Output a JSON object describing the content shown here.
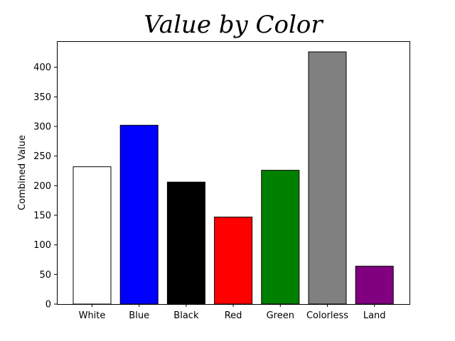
{
  "chart_data": {
    "type": "bar",
    "title": "Value by Color",
    "xlabel": "",
    "ylabel": "Combined Value",
    "categories": [
      "White",
      "Blue",
      "Black",
      "Red",
      "Green",
      "Colorless",
      "Land"
    ],
    "values": [
      232,
      302,
      206,
      147,
      226,
      426,
      64
    ],
    "bar_colors": [
      "#ffffff",
      "#0000ff",
      "#000000",
      "#ff0000",
      "#008000",
      "#808080",
      "#800080"
    ],
    "bar_edge_color": "#000000",
    "ylim": [
      0,
      444
    ],
    "yticks": [
      0,
      50,
      100,
      150,
      200,
      250,
      300,
      350,
      400
    ],
    "grid": false,
    "legend": false
  }
}
